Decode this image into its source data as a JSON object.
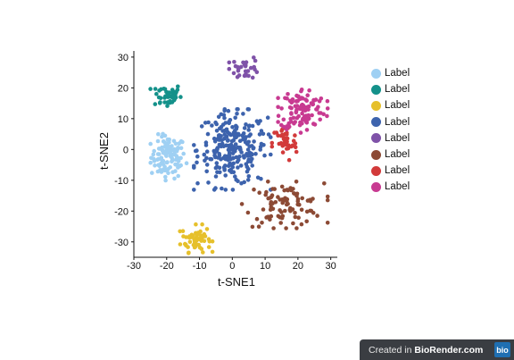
{
  "chart_data": {
    "type": "scatter",
    "xlabel": "t-SNE1",
    "ylabel": "t-SNE2",
    "xlim": [
      -30,
      32
    ],
    "ylim": [
      -35,
      32
    ],
    "xticks": [
      -30,
      -20,
      -10,
      0,
      10,
      20,
      30
    ],
    "yticks": [
      -30,
      -20,
      -10,
      0,
      10,
      20,
      30
    ],
    "grid": false,
    "legend_position": "right",
    "series": [
      {
        "name": "Label",
        "color": "#9fd0f3",
        "center": [
          -19.5,
          -2.5
        ],
        "spread": [
          4.2,
          5.5
        ],
        "n": 110
      },
      {
        "name": "Label",
        "color": "#14918a",
        "center": [
          -20,
          17.5
        ],
        "spread": [
          3.6,
          3.2
        ],
        "n": 45
      },
      {
        "name": "Label",
        "color": "#e6c02b",
        "center": [
          -11,
          -29
        ],
        "spread": [
          3.6,
          3.4
        ],
        "n": 60
      },
      {
        "name": "Label",
        "color": "#3d63ad",
        "center": [
          0,
          0
        ],
        "spread": [
          8.5,
          9.5
        ],
        "n": 240
      },
      {
        "name": "Label",
        "color": "#7f52a8",
        "center": [
          4,
          26.5
        ],
        "spread": [
          3.6,
          2.8
        ],
        "n": 30
      },
      {
        "name": "Label",
        "color": "#8c4a35",
        "center": [
          16,
          -18
        ],
        "spread": [
          9.5,
          5.5
        ],
        "n": 95
      },
      {
        "name": "Label",
        "color": "#d23a3a",
        "center": [
          16,
          2
        ],
        "spread": [
          3.0,
          4.8
        ],
        "n": 45
      },
      {
        "name": "Label",
        "color": "#c83a91",
        "center": [
          21.5,
          13
        ],
        "spread": [
          5.5,
          5.5
        ],
        "n": 110
      }
    ]
  },
  "legend": {
    "items": [
      {
        "label": "Label",
        "color": "#9fd0f3"
      },
      {
        "label": "Label",
        "color": "#14918a"
      },
      {
        "label": "Label",
        "color": "#e6c02b"
      },
      {
        "label": "Label",
        "color": "#3d63ad"
      },
      {
        "label": "Label",
        "color": "#7f52a8"
      },
      {
        "label": "Label",
        "color": "#8c4a35"
      },
      {
        "label": "Label",
        "color": "#d23a3a"
      },
      {
        "label": "Label",
        "color": "#c83a91"
      }
    ]
  },
  "watermark": {
    "prefix": "Created in ",
    "brand": "BioRender.com",
    "logo": "bio"
  }
}
